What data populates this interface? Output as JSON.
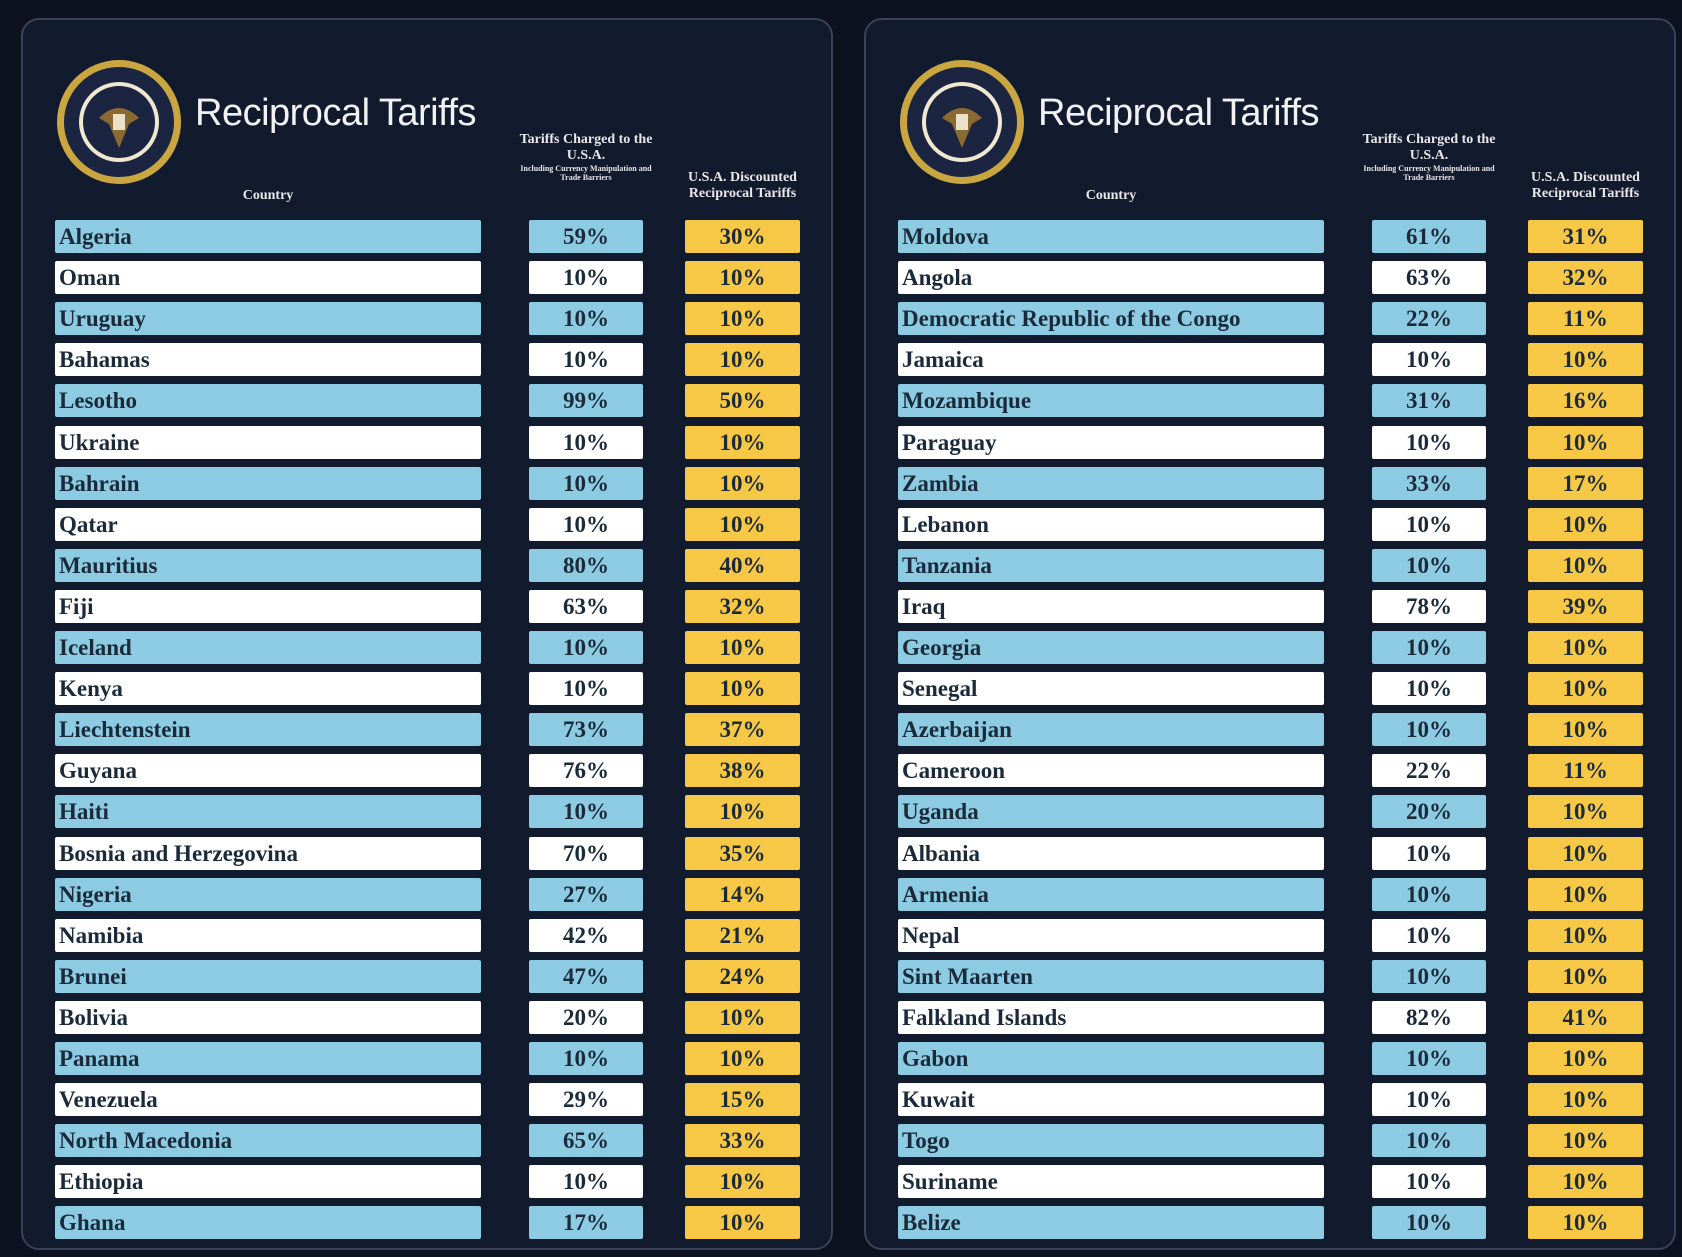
{
  "panels": [
    {
      "title": "Reciprocal Tariffs",
      "headers": {
        "country": "Country",
        "charged": "Tariffs Charged to the U.S.A.",
        "charged_note": "Including Currency Manipulation and Trade Barriers",
        "reciprocal": "U.S.A. Discounted Reciprocal Tariffs"
      },
      "rows": [
        [
          "Algeria",
          "59%",
          "30%"
        ],
        [
          "Oman",
          "10%",
          "10%"
        ],
        [
          "Uruguay",
          "10%",
          "10%"
        ],
        [
          "Bahamas",
          "10%",
          "10%"
        ],
        [
          "Lesotho",
          "99%",
          "50%"
        ],
        [
          "Ukraine",
          "10%",
          "10%"
        ],
        [
          "Bahrain",
          "10%",
          "10%"
        ],
        [
          "Qatar",
          "10%",
          "10%"
        ],
        [
          "Mauritius",
          "80%",
          "40%"
        ],
        [
          "Fiji",
          "63%",
          "32%"
        ],
        [
          "Iceland",
          "10%",
          "10%"
        ],
        [
          "Kenya",
          "10%",
          "10%"
        ],
        [
          "Liechtenstein",
          "73%",
          "37%"
        ],
        [
          "Guyana",
          "76%",
          "38%"
        ],
        [
          "Haiti",
          "10%",
          "10%"
        ],
        [
          "Bosnia and Herzegovina",
          "70%",
          "35%"
        ],
        [
          "Nigeria",
          "27%",
          "14%"
        ],
        [
          "Namibia",
          "42%",
          "21%"
        ],
        [
          "Brunei",
          "47%",
          "24%"
        ],
        [
          "Bolivia",
          "20%",
          "10%"
        ],
        [
          "Panama",
          "10%",
          "10%"
        ],
        [
          "Venezuela",
          "29%",
          "15%"
        ],
        [
          "North Macedonia",
          "65%",
          "33%"
        ],
        [
          "Ethiopia",
          "10%",
          "10%"
        ],
        [
          "Ghana",
          "17%",
          "10%"
        ]
      ]
    },
    {
      "title": "Reciprocal Tariffs",
      "headers": {
        "country": "Country",
        "charged": "Tariffs Charged to the U.S.A.",
        "charged_note": "Including Currency Manipulation and Trade Barriers",
        "reciprocal": "U.S.A. Discounted Reciprocal Tariffs"
      },
      "rows": [
        [
          "Moldova",
          "61%",
          "31%"
        ],
        [
          "Angola",
          "63%",
          "32%"
        ],
        [
          "Democratic Republic of the Congo",
          "22%",
          "11%"
        ],
        [
          "Jamaica",
          "10%",
          "10%"
        ],
        [
          "Mozambique",
          "31%",
          "16%"
        ],
        [
          "Paraguay",
          "10%",
          "10%"
        ],
        [
          "Zambia",
          "33%",
          "17%"
        ],
        [
          "Lebanon",
          "10%",
          "10%"
        ],
        [
          "Tanzania",
          "10%",
          "10%"
        ],
        [
          "Iraq",
          "78%",
          "39%"
        ],
        [
          "Georgia",
          "10%",
          "10%"
        ],
        [
          "Senegal",
          "10%",
          "10%"
        ],
        [
          "Azerbaijan",
          "10%",
          "10%"
        ],
        [
          "Cameroon",
          "22%",
          "11%"
        ],
        [
          "Uganda",
          "20%",
          "10%"
        ],
        [
          "Albania",
          "10%",
          "10%"
        ],
        [
          "Armenia",
          "10%",
          "10%"
        ],
        [
          "Nepal",
          "10%",
          "10%"
        ],
        [
          "Sint Maarten",
          "10%",
          "10%"
        ],
        [
          "Falkland Islands",
          "82%",
          "41%"
        ],
        [
          "Gabon",
          "10%",
          "10%"
        ],
        [
          "Kuwait",
          "10%",
          "10%"
        ],
        [
          "Togo",
          "10%",
          "10%"
        ],
        [
          "Suriname",
          "10%",
          "10%"
        ],
        [
          "Belize",
          "10%",
          "10%"
        ]
      ]
    }
  ]
}
